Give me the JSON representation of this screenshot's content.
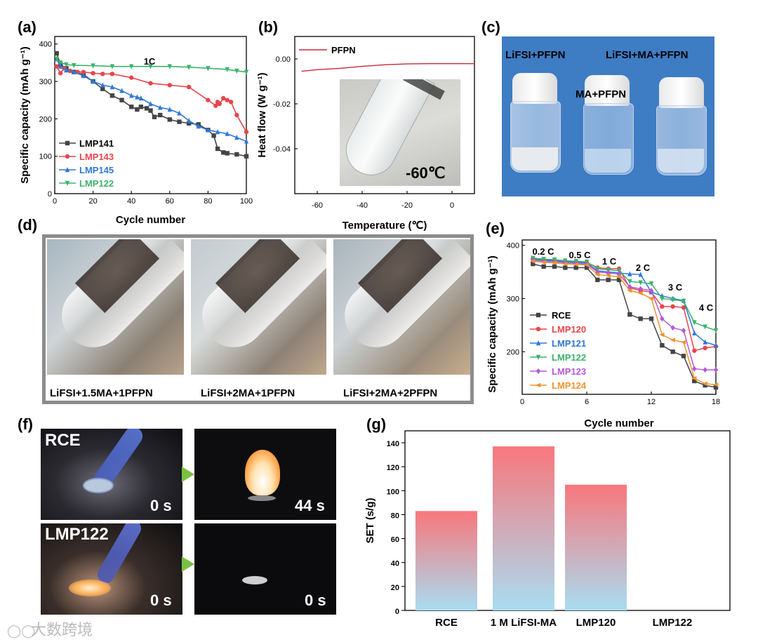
{
  "panel_labels": {
    "a": "(a)",
    "b": "(b)",
    "c": "(c)",
    "d": "(d)",
    "e": "(e)",
    "f": "(f)",
    "g": "(g)"
  },
  "chart_data": [
    {
      "id": "a",
      "type": "line",
      "xlabel": "Cycle number",
      "ylabel": "Specific capacity (mAh g⁻¹)",
      "annotation": "1C",
      "xlim": [
        0,
        100
      ],
      "ylim": [
        0,
        420
      ],
      "xticks": [
        "0",
        "20",
        "40",
        "60",
        "80",
        "100"
      ],
      "yticks": [
        "0",
        "100",
        "200",
        "300",
        "400"
      ],
      "legend": "bottom-left",
      "series": [
        {
          "name": "LMP141",
          "color": "#444444",
          "marker": "square",
          "x": [
            1,
            3,
            6,
            10,
            15,
            20,
            25,
            30,
            35,
            40,
            43,
            45,
            48,
            50,
            52,
            55,
            60,
            65,
            70,
            75,
            80,
            83,
            85,
            88,
            90,
            95,
            100
          ],
          "y": [
            375,
            345,
            335,
            325,
            318,
            300,
            280,
            262,
            250,
            232,
            225,
            232,
            228,
            222,
            205,
            210,
            198,
            192,
            188,
            185,
            170,
            155,
            120,
            110,
            108,
            105,
            100
          ]
        },
        {
          "name": "LMP143",
          "color": "#e8454a",
          "marker": "circle",
          "x": [
            1,
            3,
            5,
            8,
            12,
            15,
            20,
            25,
            30,
            40,
            50,
            60,
            70,
            80,
            84,
            85,
            86,
            88,
            90,
            92,
            95,
            100
          ],
          "y": [
            340,
            322,
            335,
            328,
            325,
            325,
            322,
            320,
            320,
            310,
            295,
            290,
            285,
            250,
            235,
            245,
            240,
            255,
            250,
            245,
            210,
            165
          ]
        },
        {
          "name": "LMP145",
          "color": "#2f78d6",
          "marker": "triangle-up",
          "x": [
            1,
            3,
            6,
            10,
            15,
            20,
            25,
            30,
            35,
            40,
            43,
            45,
            50,
            55,
            60,
            65,
            70,
            75,
            80,
            85,
            90,
            95,
            100
          ],
          "y": [
            360,
            340,
            330,
            325,
            315,
            300,
            290,
            285,
            275,
            262,
            258,
            255,
            240,
            230,
            225,
            215,
            195,
            180,
            170,
            165,
            160,
            150,
            140
          ]
        },
        {
          "name": "LMP122",
          "color": "#3bb36a",
          "marker": "triangle-down",
          "x": [
            1,
            3,
            6,
            10,
            20,
            30,
            40,
            50,
            60,
            70,
            80,
            90,
            95,
            100
          ],
          "y": [
            360,
            350,
            345,
            343,
            342,
            340,
            340,
            340,
            340,
            338,
            335,
            332,
            328,
            325
          ]
        }
      ]
    },
    {
      "id": "b",
      "type": "line",
      "xlabel": "Temperature (℃)",
      "ylabel": "Heat flow (W g⁻¹)",
      "xlim": [
        -70,
        10
      ],
      "ylim": [
        -0.06,
        0.01
      ],
      "xticks": [
        "-60",
        "-40",
        "-20",
        "0"
      ],
      "yticks": [
        "0.00",
        "-0.02",
        "-0.04"
      ],
      "legend": "top-left",
      "inset_text": "-60℃",
      "series": [
        {
          "name": "PFPN",
          "color": "#c8293a",
          "x": [
            -67,
            -60,
            -50,
            -40,
            -30,
            -20,
            -10,
            0,
            10
          ],
          "y": [
            -0.0055,
            -0.0048,
            -0.0042,
            -0.0033,
            -0.0026,
            -0.0022,
            -0.0021,
            -0.0021,
            -0.0021
          ]
        }
      ]
    },
    {
      "id": "e",
      "type": "line",
      "xlabel": "Cycle number",
      "ylabel": "Specific capacity (mAh g⁻¹)",
      "xlim": [
        0,
        18
      ],
      "ylim": [
        120,
        410
      ],
      "xticks": [
        "0",
        "6",
        "12",
        "18"
      ],
      "yticks": [
        "200",
        "300",
        "400"
      ],
      "rate_labels": [
        "0.2 C",
        "0.5 C",
        "1 C",
        "2 C",
        "3 C",
        "4 C"
      ],
      "legend": "bottom-left",
      "series": [
        {
          "name": "RCE",
          "color": "#444444",
          "marker": "square",
          "x": [
            1,
            2,
            3,
            4,
            5,
            6,
            7,
            8,
            9,
            10,
            11,
            12,
            13,
            14,
            15,
            16,
            17,
            18
          ],
          "y": [
            365,
            360,
            360,
            358,
            358,
            358,
            335,
            335,
            335,
            270,
            262,
            262,
            212,
            200,
            192,
            145,
            137,
            133
          ]
        },
        {
          "name": "LMP120",
          "color": "#e8454a",
          "marker": "circle",
          "x": [
            1,
            2,
            3,
            4,
            5,
            6,
            7,
            8,
            9,
            10,
            11,
            12,
            13,
            14,
            15,
            16,
            17,
            18
          ],
          "y": [
            375,
            373,
            372,
            370,
            369,
            368,
            358,
            356,
            356,
            320,
            315,
            312,
            285,
            285,
            283,
            202,
            207,
            210
          ]
        },
        {
          "name": "LMP121",
          "color": "#2f78d6",
          "marker": "triangle-up",
          "x": [
            1,
            2,
            3,
            4,
            5,
            6,
            7,
            8,
            9,
            10,
            11,
            12,
            13,
            14,
            15,
            16,
            17,
            18
          ],
          "y": [
            374,
            372,
            371,
            369,
            368,
            367,
            352,
            350,
            348,
            346,
            345,
            312,
            305,
            300,
            296,
            235,
            218,
            212
          ]
        },
        {
          "name": "LMP122",
          "color": "#3bb36a",
          "marker": "triangle-down",
          "x": [
            1,
            2,
            3,
            4,
            5,
            6,
            7,
            8,
            9,
            10,
            11,
            12,
            13,
            14,
            15,
            16,
            17,
            18
          ],
          "y": [
            376,
            374,
            373,
            371,
            370,
            369,
            356,
            354,
            352,
            332,
            330,
            328,
            300,
            298,
            295,
            255,
            247,
            240
          ]
        },
        {
          "name": "LMP123",
          "color": "#b25ad6",
          "marker": "diamond",
          "x": [
            1,
            2,
            3,
            4,
            5,
            6,
            7,
            8,
            9,
            10,
            11,
            12,
            13,
            14,
            15,
            16,
            17,
            18
          ],
          "y": [
            372,
            370,
            369,
            367,
            366,
            365,
            350,
            348,
            346,
            322,
            318,
            315,
            262,
            245,
            240,
            168,
            166,
            166
          ]
        },
        {
          "name": "LMP124",
          "color": "#f0922e",
          "marker": "triangle-left",
          "x": [
            1,
            2,
            3,
            4,
            5,
            6,
            7,
            8,
            9,
            10,
            11,
            12,
            13,
            14,
            15,
            16,
            17,
            18
          ],
          "y": [
            370,
            368,
            367,
            365,
            364,
            363,
            345,
            343,
            341,
            315,
            310,
            300,
            232,
            222,
            218,
            150,
            140,
            138
          ]
        }
      ]
    },
    {
      "id": "g",
      "type": "bar",
      "ylabel": "SET (s/g)",
      "categories": [
        "RCE",
        "1 M LiFSI-MA",
        "LMP120",
        "LMP122"
      ],
      "values": [
        83,
        137,
        105,
        0
      ],
      "ylim": [
        0,
        150
      ],
      "yticks": [
        "0",
        "20",
        "40",
        "60",
        "80",
        "100",
        "120",
        "140"
      ],
      "bar_gradient": [
        "#f8777c",
        "#a9ddf2"
      ]
    }
  ],
  "panel_c": {
    "labels": [
      "LiFSI+PFPN",
      "MA+PFPN",
      "LiFSI+MA+PFPN"
    ],
    "background": "#3e7cc4"
  },
  "panel_d": {
    "captions": [
      "LiFSI+1.5MA+1PFPN",
      "LiFSI+2MA+1PFPN",
      "LiFSI+2MA+2PFPN"
    ]
  },
  "panel_f": {
    "row_labels": [
      "RCE",
      "LMP122"
    ],
    "times": [
      "0 s",
      "44 s",
      "0 s",
      "0 s"
    ]
  },
  "watermark": "大数跨境"
}
